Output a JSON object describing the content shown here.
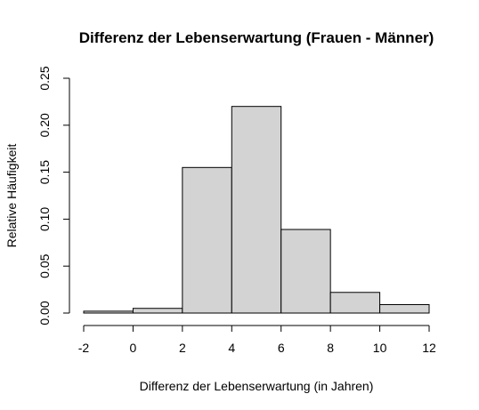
{
  "chart_data": {
    "type": "bar",
    "title": "Differenz der Lebenserwartung (Frauen - Männer)",
    "xlabel": "Differenz der Lebenserwartung (in Jahren)",
    "ylabel": "Relative Häufigkeit",
    "bins": [
      {
        "from": -2,
        "to": 0,
        "value": 0.002
      },
      {
        "from": 0,
        "to": 2,
        "value": 0.005
      },
      {
        "from": 2,
        "to": 4,
        "value": 0.155
      },
      {
        "from": 4,
        "to": 6,
        "value": 0.22
      },
      {
        "from": 6,
        "to": 8,
        "value": 0.089
      },
      {
        "from": 8,
        "to": 10,
        "value": 0.022
      },
      {
        "from": 10,
        "to": 12,
        "value": 0.009
      }
    ],
    "xticks": [
      "-2",
      "0",
      "2",
      "4",
      "6",
      "8",
      "10",
      "12"
    ],
    "yticks": [
      "0.00",
      "0.05",
      "0.10",
      "0.15",
      "0.20",
      "0.25"
    ],
    "xlim": [
      -2,
      12
    ],
    "ylim": [
      0,
      0.25
    ],
    "bar_fill": "#d3d3d3",
    "bar_stroke": "#000000",
    "grid": false
  }
}
